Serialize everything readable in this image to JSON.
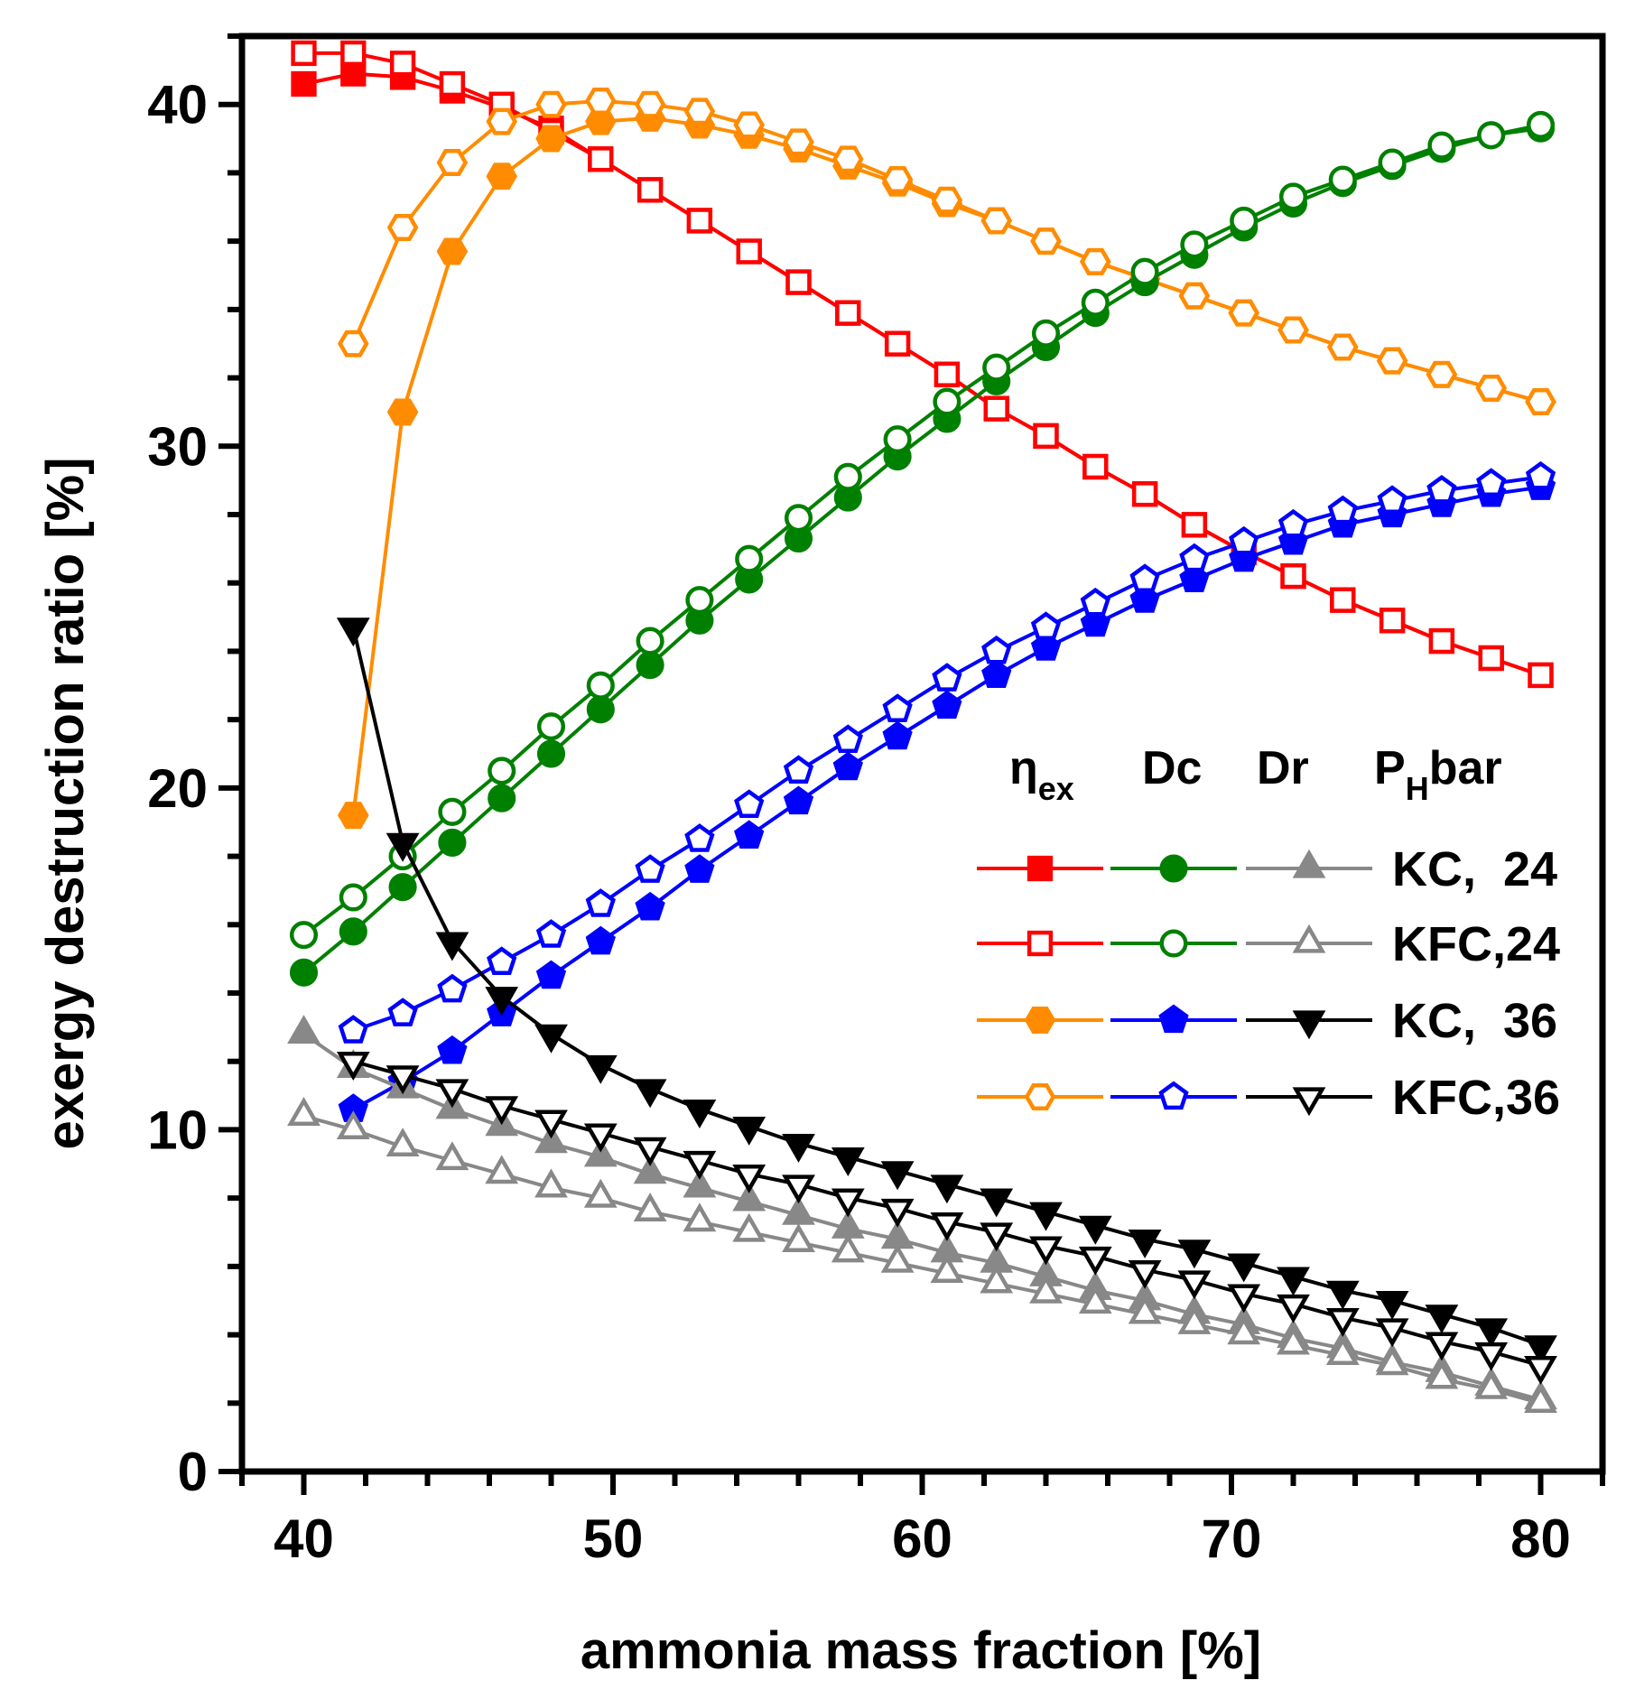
{
  "chart_data": {
    "type": "line",
    "xlabel": "ammonia mass fraction [%]",
    "ylabel": "exergy destruction ratio [%]",
    "xlim": [
      38,
      82
    ],
    "ylim": [
      0,
      42
    ],
    "xticks": [
      40,
      50,
      60,
      70,
      80
    ],
    "yticks": [
      0,
      10,
      20,
      30,
      40
    ],
    "x_minor_step": 2,
    "y_minor_step": 2,
    "grid": false,
    "legend": {
      "position": "right-middle",
      "headers": [
        {
          "main": "η",
          "sub": "ex"
        },
        {
          "main": "Dc",
          "sub": ""
        },
        {
          "main": "Dr",
          "sub": ""
        },
        {
          "main": "P",
          "sub": "H",
          "tail": "bar"
        }
      ],
      "rows": [
        {
          "label": "KC,  24",
          "markers": [
            [
              "square",
              true,
              "#ff0000"
            ],
            [
              "circle",
              true,
              "#008000"
            ],
            [
              "triangle",
              true,
              "#888888"
            ]
          ]
        },
        {
          "label": "KFC,24",
          "markers": [
            [
              "square",
              false,
              "#ff0000"
            ],
            [
              "circle",
              false,
              "#008000"
            ],
            [
              "triangle",
              false,
              "#888888"
            ]
          ]
        },
        {
          "label": "KC,  36",
          "markers": [
            [
              "hexagon",
              true,
              "#ff8c00"
            ],
            [
              "pentagon",
              true,
              "#0000ff"
            ],
            [
              "down-triangle",
              true,
              "#000000"
            ]
          ]
        },
        {
          "label": "KFC,36",
          "markers": [
            [
              "hexagon",
              false,
              "#ff8c00"
            ],
            [
              "pentagon",
              false,
              "#0000ff"
            ],
            [
              "down-triangle",
              false,
              "#000000"
            ]
          ]
        }
      ]
    },
    "series": [
      {
        "name": "ηex KC 24",
        "color": "#ff0000",
        "marker": "square",
        "filled": true,
        "x": [
          40,
          41.6,
          43.2,
          44.8,
          46.4,
          48,
          49.6,
          51.2,
          52.8,
          54.4,
          56,
          57.6,
          59.2,
          60.8,
          62.4,
          64,
          65.6,
          67.2,
          68.8,
          70.4,
          72,
          73.6,
          75.2,
          76.8,
          78.4,
          80
        ],
        "y": [
          40.6,
          40.9,
          40.8,
          40.4,
          39.9,
          39.3,
          38.4,
          37.5,
          36.6,
          35.7,
          34.8,
          33.9,
          33.0,
          32.1,
          31.1,
          30.3,
          29.4,
          28.6,
          27.7,
          26.9,
          26.2,
          25.5,
          24.9,
          24.3,
          23.8,
          23.3
        ]
      },
      {
        "name": "ηex KFC 24",
        "color": "#ff0000",
        "marker": "square",
        "filled": false,
        "x": [
          40,
          41.6,
          43.2,
          44.8,
          46.4,
          48,
          49.6,
          51.2,
          52.8,
          54.4,
          56,
          57.6,
          59.2,
          60.8,
          62.4,
          64,
          65.6,
          67.2,
          68.8,
          70.4,
          72,
          73.6,
          75.2,
          76.8,
          78.4,
          80
        ],
        "y": [
          41.5,
          41.5,
          41.2,
          40.6,
          40.0,
          39.2,
          38.4,
          37.5,
          36.6,
          35.7,
          34.8,
          33.9,
          33.0,
          32.1,
          31.1,
          30.3,
          29.4,
          28.6,
          27.7,
          26.9,
          26.2,
          25.5,
          24.9,
          24.3,
          23.8,
          23.3
        ]
      },
      {
        "name": "ηex KC 36",
        "color": "#ff8c00",
        "marker": "hexagon",
        "filled": true,
        "x": [
          41.6,
          43.2,
          44.8,
          46.4,
          48,
          49.6,
          51.2,
          52.8,
          54.4,
          56,
          57.6,
          59.2,
          60.8,
          62.4,
          64,
          65.6,
          67.2,
          68.8,
          70.4,
          72,
          73.6,
          75.2,
          76.8,
          78.4,
          80
        ],
        "y": [
          19.2,
          31.0,
          35.7,
          37.9,
          39.0,
          39.5,
          39.6,
          39.4,
          39.1,
          38.7,
          38.2,
          37.7,
          37.1,
          36.6,
          36.0,
          35.4,
          34.9,
          34.4,
          33.9,
          33.4,
          32.9,
          32.5,
          32.1,
          31.7,
          31.3
        ]
      },
      {
        "name": "ηex KFC 36",
        "color": "#ff8c00",
        "marker": "hexagon",
        "filled": false,
        "x": [
          41.6,
          43.2,
          44.8,
          46.4,
          48,
          49.6,
          51.2,
          52.8,
          54.4,
          56,
          57.6,
          59.2,
          60.8,
          62.4,
          64,
          65.6,
          67.2,
          68.8,
          70.4,
          72,
          73.6,
          75.2,
          76.8,
          78.4,
          80
        ],
        "y": [
          33.0,
          36.4,
          38.3,
          39.5,
          40.0,
          40.1,
          40.0,
          39.8,
          39.4,
          38.9,
          38.4,
          37.8,
          37.2,
          36.6,
          36.0,
          35.4,
          34.9,
          34.4,
          33.9,
          33.4,
          32.9,
          32.5,
          32.1,
          31.7,
          31.3
        ]
      },
      {
        "name": "Dc KC 24",
        "color": "#008000",
        "marker": "circle",
        "filled": true,
        "x": [
          40,
          41.6,
          43.2,
          44.8,
          46.4,
          48,
          49.6,
          51.2,
          52.8,
          54.4,
          56,
          57.6,
          59.2,
          60.8,
          62.4,
          64,
          65.6,
          67.2,
          68.8,
          70.4,
          72,
          73.6,
          75.2,
          76.8,
          78.4,
          80
        ],
        "y": [
          14.6,
          15.8,
          17.1,
          18.4,
          19.7,
          21.0,
          22.3,
          23.6,
          24.9,
          26.1,
          27.3,
          28.5,
          29.7,
          30.8,
          31.9,
          32.9,
          33.9,
          34.8,
          35.6,
          36.4,
          37.1,
          37.7,
          38.2,
          38.7,
          39.1,
          39.3
        ]
      },
      {
        "name": "Dc KFC 24",
        "color": "#008000",
        "marker": "circle",
        "filled": false,
        "x": [
          40,
          41.6,
          43.2,
          44.8,
          46.4,
          48,
          49.6,
          51.2,
          52.8,
          54.4,
          56,
          57.6,
          59.2,
          60.8,
          62.4,
          64,
          65.6,
          67.2,
          68.8,
          70.4,
          72,
          73.6,
          75.2,
          76.8,
          78.4,
          80
        ],
        "y": [
          15.7,
          16.8,
          18.0,
          19.3,
          20.5,
          21.8,
          23.0,
          24.3,
          25.5,
          26.7,
          27.9,
          29.1,
          30.2,
          31.3,
          32.3,
          33.3,
          34.2,
          35.1,
          35.9,
          36.6,
          37.3,
          37.8,
          38.3,
          38.8,
          39.1,
          39.4
        ]
      },
      {
        "name": "Dc KC 36",
        "color": "#0000ff",
        "marker": "pentagon",
        "filled": true,
        "x": [
          41.6,
          43.2,
          44.8,
          46.4,
          48,
          49.6,
          51.2,
          52.8,
          54.4,
          56,
          57.6,
          59.2,
          60.8,
          62.4,
          64,
          65.6,
          67.2,
          68.8,
          70.4,
          72,
          73.6,
          75.2,
          76.8,
          78.4,
          80
        ],
        "y": [
          10.6,
          11.4,
          12.3,
          13.4,
          14.5,
          15.5,
          16.5,
          17.6,
          18.6,
          19.6,
          20.6,
          21.5,
          22.4,
          23.3,
          24.1,
          24.8,
          25.5,
          26.1,
          26.7,
          27.2,
          27.7,
          28.0,
          28.3,
          28.6,
          28.8
        ]
      },
      {
        "name": "Dc KFC 36",
        "color": "#0000ff",
        "marker": "pentagon",
        "filled": false,
        "x": [
          41.6,
          43.2,
          44.8,
          46.4,
          48,
          49.6,
          51.2,
          52.8,
          54.4,
          56,
          57.6,
          59.2,
          60.8,
          62.4,
          64,
          65.6,
          67.2,
          68.8,
          70.4,
          72,
          73.6,
          75.2,
          76.8,
          78.4,
          80
        ],
        "y": [
          12.9,
          13.4,
          14.1,
          14.9,
          15.7,
          16.6,
          17.6,
          18.5,
          19.5,
          20.5,
          21.4,
          22.3,
          23.2,
          24.0,
          24.7,
          25.4,
          26.1,
          26.7,
          27.2,
          27.7,
          28.1,
          28.4,
          28.7,
          28.9,
          29.1
        ]
      },
      {
        "name": "Dr KC 24",
        "color": "#888888",
        "marker": "triangle",
        "filled": true,
        "x": [
          40,
          41.6,
          43.2,
          44.8,
          46.4,
          48,
          49.6,
          51.2,
          52.8,
          54.4,
          56,
          57.6,
          59.2,
          60.8,
          62.4,
          64,
          65.6,
          67.2,
          68.8,
          70.4,
          72,
          73.6,
          75.2,
          76.8,
          78.4,
          80
        ],
        "y": [
          12.8,
          11.8,
          11.2,
          10.6,
          10.1,
          9.6,
          9.2,
          8.7,
          8.3,
          7.9,
          7.5,
          7.1,
          6.8,
          6.4,
          6.1,
          5.7,
          5.3,
          5.0,
          4.6,
          4.3,
          3.9,
          3.6,
          3.2,
          2.9,
          2.5,
          2.1
        ]
      },
      {
        "name": "Dr KFC 24",
        "color": "#888888",
        "marker": "triangle",
        "filled": false,
        "x": [
          40,
          41.6,
          43.2,
          44.8,
          46.4,
          48,
          49.6,
          51.2,
          52.8,
          54.4,
          56,
          57.6,
          59.2,
          60.8,
          62.4,
          64,
          65.6,
          67.2,
          68.8,
          70.4,
          72,
          73.6,
          75.2,
          76.8,
          78.4,
          80
        ],
        "y": [
          10.4,
          10.0,
          9.5,
          9.1,
          8.7,
          8.3,
          8.0,
          7.6,
          7.3,
          7.0,
          6.7,
          6.4,
          6.1,
          5.8,
          5.5,
          5.2,
          4.9,
          4.6,
          4.3,
          4.0,
          3.7,
          3.4,
          3.1,
          2.7,
          2.4,
          2.0
        ]
      },
      {
        "name": "Dr KC 36",
        "color": "#000000",
        "marker": "down-triangle",
        "filled": true,
        "x": [
          41.6,
          43.2,
          44.8,
          46.4,
          48,
          49.6,
          51.2,
          52.8,
          54.4,
          56,
          57.6,
          59.2,
          60.8,
          62.4,
          64,
          65.6,
          67.2,
          68.8,
          70.4,
          72,
          73.6,
          75.2,
          76.8,
          78.4,
          80
        ],
        "y": [
          24.7,
          18.4,
          15.5,
          13.9,
          12.8,
          11.9,
          11.2,
          10.6,
          10.1,
          9.6,
          9.2,
          8.8,
          8.4,
          8.0,
          7.6,
          7.2,
          6.8,
          6.5,
          6.1,
          5.7,
          5.3,
          5.0,
          4.6,
          4.2,
          3.7
        ]
      },
      {
        "name": "Dr KFC 36",
        "color": "#000000",
        "marker": "down-triangle",
        "filled": false,
        "x": [
          41.6,
          43.2,
          44.8,
          46.4,
          48,
          49.6,
          51.2,
          52.8,
          54.4,
          56,
          57.6,
          59.2,
          60.8,
          62.4,
          64,
          65.6,
          67.2,
          68.8,
          70.4,
          72,
          73.6,
          75.2,
          76.8,
          78.4,
          80
        ],
        "y": [
          12.0,
          11.6,
          11.2,
          10.7,
          10.3,
          9.9,
          9.5,
          9.1,
          8.7,
          8.4,
          8.0,
          7.7,
          7.3,
          7.0,
          6.6,
          6.3,
          5.9,
          5.6,
          5.2,
          4.9,
          4.5,
          4.2,
          3.8,
          3.5,
          3.1
        ]
      }
    ]
  }
}
